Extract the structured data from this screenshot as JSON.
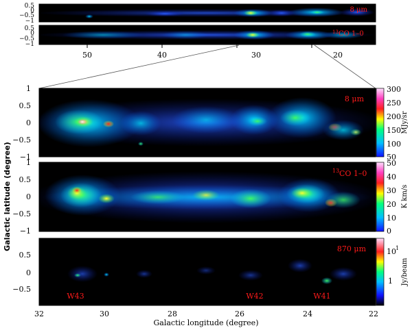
{
  "overview": {
    "top_label": "8 μm",
    "bottom_label_sup": "13",
    "bottom_label": "CO 1–0",
    "ticks_top": [
      "0.5",
      "0",
      "−0.5",
      "−1"
    ],
    "ticks_bottom": [
      "0.5",
      "0",
      "−0.5",
      "−1"
    ],
    "xticks": [
      "50",
      "40",
      "30",
      "20"
    ]
  },
  "panel1": {
    "label": "8 μm",
    "yticks": [
      "1",
      "0.5",
      "0",
      "−0.5",
      "−1"
    ],
    "cbar_ticks": [
      "300",
      "250",
      "200",
      "150",
      "100",
      "50"
    ],
    "cbar_unit": "MJy/sr"
  },
  "panel2": {
    "label_sup": "13",
    "label": "CO 1–0",
    "yticks": [
      "1",
      "0.5",
      "0",
      "−0.5",
      "−1"
    ],
    "cbar_ticks": [
      "50",
      "40",
      "30",
      "20",
      "10",
      "0"
    ],
    "cbar_unit": "K km/s"
  },
  "panel3": {
    "label": "870 μm",
    "yticks": [
      "0.5",
      "0",
      "−0.5"
    ],
    "cbar_ticks_major": "10",
    "cbar_ticks_sup": "1",
    "cbar_ticks_minor": "1",
    "cbar_unit": "Jy/beam",
    "regions": [
      "W43",
      "W42",
      "W41"
    ]
  },
  "axes": {
    "ylabel": "Galactic latitude (degree)",
    "xlabel": "Galactic longitude (degree)",
    "xticks": [
      "32",
      "30",
      "28",
      "26",
      "24",
      "22"
    ]
  },
  "colors": {
    "label_red": "#ff1a1a",
    "background": "#000000"
  }
}
